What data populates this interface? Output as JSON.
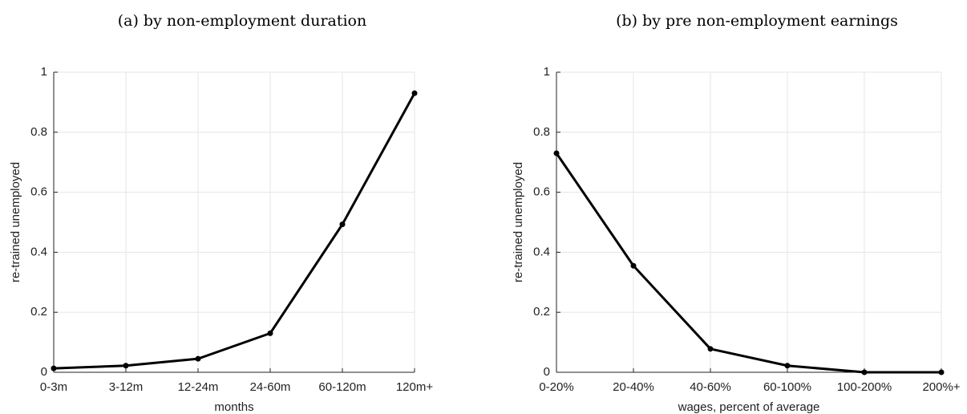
{
  "chart_data": [
    {
      "type": "line",
      "title": "(a) by non-employment duration",
      "xlabel": "months",
      "ylabel": "re-trained unemployed",
      "categories": [
        "0-3m",
        "3-12m",
        "12-24m",
        "24-60m",
        "60-120m",
        "120m+"
      ],
      "values": [
        0.013,
        0.022,
        0.045,
        0.13,
        0.493,
        0.93
      ],
      "color": "#000000",
      "ylim": [
        0,
        1
      ],
      "yticks": [
        0,
        0.2,
        0.4,
        0.6,
        0.8,
        1
      ],
      "grid": true
    },
    {
      "type": "line",
      "title": "(b) by pre non-employment earnings",
      "xlabel": "wages, percent of average",
      "ylabel": "re-trained unemployed",
      "categories": [
        "0-20%",
        "20-40%",
        "40-60%",
        "60-100%",
        "100-200%",
        "200%+"
      ],
      "values": [
        0.73,
        0.355,
        0.078,
        0.022,
        0,
        0
      ],
      "color": "#000000",
      "ylim": [
        0,
        1
      ],
      "yticks": [
        0,
        0.2,
        0.4,
        0.6,
        0.8,
        1
      ],
      "grid": true
    }
  ]
}
